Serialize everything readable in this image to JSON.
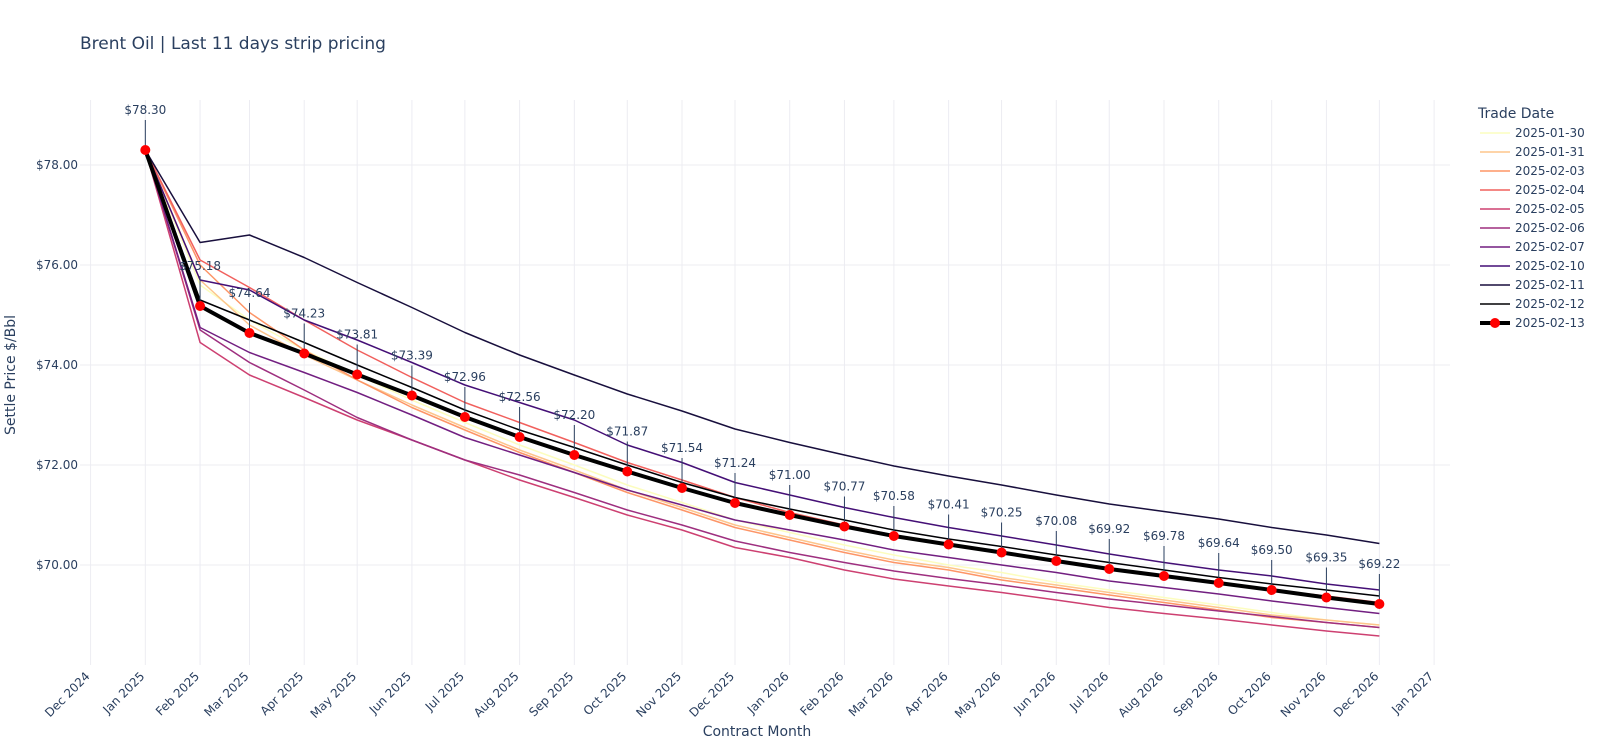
{
  "chart_data": {
    "type": "line",
    "title": "Brent Oil | Last 11 days strip pricing",
    "xlabel": "Contract Month",
    "ylabel": "Settle Price $/Bbl",
    "legend_title": "Trade Date",
    "legend_position": "right",
    "grid": true,
    "x_tick_labels": [
      "Dec 2024",
      "Jan 2025",
      "Feb 2025",
      "Mar 2025",
      "Apr 2025",
      "May 2025",
      "Jun 2025",
      "Jul 2025",
      "Aug 2025",
      "Sep 2025",
      "Oct 2025",
      "Nov 2025",
      "Dec 2025",
      "Jan 2026",
      "Feb 2026",
      "Mar 2026",
      "Apr 2026",
      "May 2026",
      "Jun 2026",
      "Jul 2026",
      "Aug 2026",
      "Sep 2026",
      "Oct 2026",
      "Nov 2026",
      "Dec 2026",
      "Jan 2027"
    ],
    "x_range": [
      "2024-11-25",
      "2027-01-10"
    ],
    "y_ticks": [
      70,
      72,
      74,
      76,
      78
    ],
    "y_tick_labels": [
      "$70.00",
      "$72.00",
      "$74.00",
      "$76.00",
      "$78.00"
    ],
    "ylim": [
      68.0,
      79.3
    ],
    "x": [
      "Jan 2025",
      "Feb 2025",
      "Mar 2025",
      "Apr 2025",
      "May 2025",
      "Jun 2025",
      "Jul 2025",
      "Aug 2025",
      "Sep 2025",
      "Oct 2025",
      "Nov 2025",
      "Dec 2025",
      "Jan 2026",
      "Feb 2026",
      "Mar 2026",
      "Apr 2026",
      "May 2026",
      "Jun 2026",
      "Jul 2026",
      "Aug 2026",
      "Sep 2026",
      "Oct 2026",
      "Nov 2026",
      "Dec 2026"
    ],
    "series": [
      {
        "name": "2025-01-30",
        "color": "#fcfdbf",
        "width": 1.5,
        "values": [
          78.3,
          75.6,
          74.9,
          74.3,
          73.8,
          73.3,
          72.85,
          72.4,
          72.0,
          71.6,
          71.25,
          70.9,
          70.65,
          70.4,
          70.2,
          70.0,
          69.85,
          69.65,
          69.5,
          69.35,
          69.2,
          69.05,
          68.9,
          68.8
        ]
      },
      {
        "name": "2025-01-31",
        "color": "#fdc58c",
        "width": 1.5,
        "values": [
          78.3,
          75.7,
          74.8,
          74.2,
          73.7,
          73.2,
          72.75,
          72.3,
          71.9,
          71.5,
          71.15,
          70.8,
          70.55,
          70.3,
          70.1,
          69.95,
          69.75,
          69.6,
          69.45,
          69.3,
          69.15,
          69.0,
          68.9,
          68.8
        ]
      },
      {
        "name": "2025-02-03",
        "color": "#fd9567",
        "width": 1.5,
        "values": [
          78.3,
          76.0,
          75.05,
          74.3,
          73.7,
          73.15,
          72.7,
          72.25,
          71.85,
          71.45,
          71.1,
          70.75,
          70.5,
          70.25,
          70.05,
          69.9,
          69.7,
          69.55,
          69.4,
          69.25,
          69.1,
          68.95,
          68.85,
          68.75
        ]
      },
      {
        "name": "2025-02-04",
        "color": "#f1605d",
        "width": 1.5,
        "values": [
          78.3,
          76.1,
          75.55,
          74.9,
          74.3,
          73.75,
          73.25,
          72.85,
          72.45,
          72.05,
          71.7,
          71.35,
          71.05,
          70.8,
          70.6,
          70.4,
          70.25,
          70.08,
          69.92,
          69.78,
          69.64,
          69.5,
          69.38,
          69.25
        ]
      },
      {
        "name": "2025-02-05",
        "color": "#cd4071",
        "width": 1.5,
        "values": [
          78.3,
          74.45,
          73.8,
          73.35,
          72.9,
          72.5,
          72.1,
          71.7,
          71.35,
          71.0,
          70.7,
          70.35,
          70.15,
          69.9,
          69.72,
          69.58,
          69.45,
          69.3,
          69.15,
          69.03,
          68.92,
          68.8,
          68.68,
          68.58
        ]
      },
      {
        "name": "2025-02-06",
        "color": "#9e2f7f",
        "width": 1.5,
        "values": [
          78.3,
          74.7,
          74.05,
          73.5,
          72.95,
          72.5,
          72.1,
          71.8,
          71.45,
          71.1,
          70.8,
          70.48,
          70.25,
          70.05,
          69.88,
          69.73,
          69.6,
          69.45,
          69.32,
          69.2,
          69.08,
          68.97,
          68.85,
          68.75
        ]
      },
      {
        "name": "2025-02-07",
        "color": "#721f81",
        "width": 1.5,
        "values": [
          78.3,
          74.75,
          74.25,
          73.85,
          73.45,
          73.0,
          72.55,
          72.2,
          71.85,
          71.5,
          71.2,
          70.9,
          70.7,
          70.5,
          70.3,
          70.15,
          70.0,
          69.85,
          69.68,
          69.55,
          69.42,
          69.28,
          69.15,
          69.03
        ]
      },
      {
        "name": "2025-02-10",
        "color": "#440f76",
        "width": 1.5,
        "values": [
          78.3,
          75.7,
          75.5,
          74.9,
          74.5,
          74.05,
          73.6,
          73.25,
          72.9,
          72.4,
          72.05,
          71.65,
          71.4,
          71.15,
          70.95,
          70.75,
          70.58,
          70.4,
          70.22,
          70.05,
          69.9,
          69.78,
          69.62,
          69.5
        ]
      },
      {
        "name": "2025-02-11",
        "color": "#180f3d",
        "width": 1.5,
        "values": [
          78.3,
          76.45,
          76.6,
          76.15,
          75.65,
          75.15,
          74.65,
          74.2,
          73.8,
          73.42,
          73.08,
          72.72,
          72.45,
          72.2,
          71.98,
          71.78,
          71.6,
          71.4,
          71.22,
          71.07,
          70.92,
          70.75,
          70.6,
          70.43
        ]
      },
      {
        "name": "2025-02-12",
        "color": "#000004",
        "width": 1.5,
        "values": [
          78.3,
          75.3,
          74.9,
          74.45,
          74.0,
          73.55,
          73.1,
          72.7,
          72.35,
          72.0,
          71.65,
          71.35,
          71.12,
          70.9,
          70.7,
          70.52,
          70.37,
          70.2,
          70.05,
          69.9,
          69.75,
          69.62,
          69.5,
          69.38
        ]
      },
      {
        "name": "2025-02-13",
        "color": "#000000",
        "width": 4,
        "markers": true,
        "marker_color": "#ff0000",
        "values": [
          78.3,
          75.18,
          74.64,
          74.23,
          73.81,
          73.39,
          72.96,
          72.56,
          72.2,
          71.87,
          71.54,
          71.24,
          71.0,
          70.77,
          70.58,
          70.41,
          70.25,
          70.08,
          69.92,
          69.78,
          69.64,
          69.5,
          69.35,
          69.22
        ]
      }
    ],
    "annotations": [
      "$78.30",
      "$75.18",
      "$74.64",
      "$74.23",
      "$73.81",
      "$73.39",
      "$72.96",
      "$72.56",
      "$72.20",
      "$71.87",
      "$71.54",
      "$71.24",
      "$71.00",
      "$70.77",
      "$70.58",
      "$70.41",
      "$70.25",
      "$70.08",
      "$69.92",
      "$69.78",
      "$69.64",
      "$69.50",
      "$69.35",
      "$69.22"
    ]
  }
}
